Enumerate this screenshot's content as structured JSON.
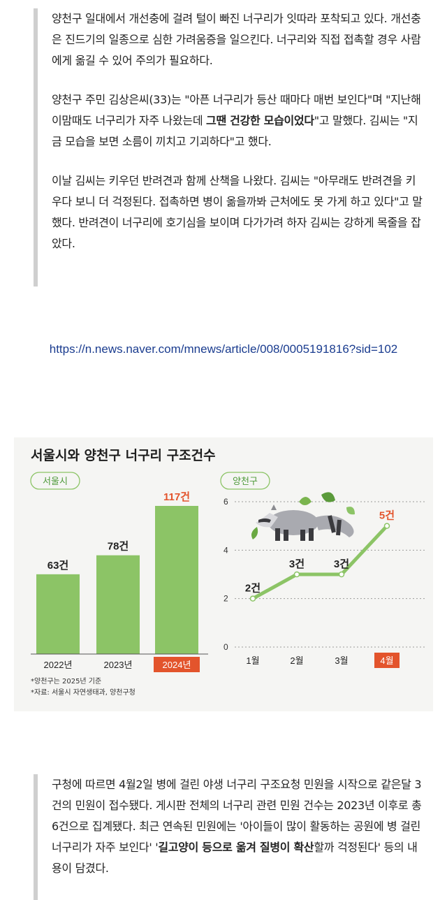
{
  "article_top": {
    "p1": "양천구 일대에서 개선충에 걸려 털이 빠진 너구리가 잇따라 포착되고 있다. 개선충은 진드기의 일종으로 심한 가려움증을 일으킨다. 너구리와 직접 접촉할 경우 사람에게 옮길 수 있어 주의가 필요하다.",
    "p2_a": "양천구 주민 김상은씨(33)는 \"아픈 너구리가 등산 때마다 매번 보인다\"며 \"지난해 이맘때도 너구리가 자주 나왔는데 ",
    "p2_bold": "그땐 건강한 모습이었다",
    "p2_b": "\"고 말했다. 김씨는 \"지금 모습을 보면 소름이 끼치고 기괴하다\"고 했다.",
    "p3": "이날 김씨는 키우던 반려견과 함께 산책을 나왔다. 김씨는 \"아무래도 반려견을 키우다 보니 더 걱정된다. 접촉하면 병이 옮을까봐 근처에도 못 가게 하고 있다\"고 말했다. 반려견이 너구리에 호기심을 보이며 다가가려 하자 김씨는 강하게 목줄을 잡았다."
  },
  "link": "https://n.news.naver.com/mnews/article/008/0005191816?sid=102",
  "infographic": {
    "title": "서울시와 양천구 너구리 구조건수",
    "footnote1": "*양천구는 2025년 기준",
    "footnote2": "*자료: 서울시 자연생태과, 양천구청"
  },
  "chart_data": [
    {
      "type": "bar",
      "panel_label": "서울시",
      "categories": [
        "2022년",
        "2023년",
        "2024년"
      ],
      "values": [
        63,
        78,
        117
      ],
      "data_labels": [
        "63건",
        "78건",
        "117건"
      ],
      "highlight_category": "2024년",
      "bar_color": "#8cc466",
      "highlight_color": "#e3542c"
    },
    {
      "type": "line",
      "panel_label": "양천구",
      "categories": [
        "1월",
        "2월",
        "3월",
        "4월"
      ],
      "values": [
        2,
        3,
        3,
        5
      ],
      "data_labels": [
        "2건",
        "3건",
        "3건",
        "5건"
      ],
      "y_ticks": [
        0,
        2,
        4,
        6
      ],
      "ylim": [
        0,
        6
      ],
      "grid": true,
      "highlight_category": "4월",
      "line_color": "#8cc466",
      "highlight_color": "#e3542c"
    }
  ],
  "article_bottom": {
    "p1_a": "구청에 따르면 4월2일 병에 걸린 야생 너구리 구조요청 민원을 시작으로 같은달 3건의 민원이 접수됐다. 게시판 전체의 너구리 관련 민원 건수는 2023년 이후로 총 6건으로 집계됐다. 최근 연속된 민원에는 '아이들이 많이 활동하는 공원에 병 걸린 너구리가 자주 보인다' '",
    "p1_bold": "길고양이 등으로 옮겨 질병이 확산",
    "p1_b": "할까 걱정된다' 등의 내용이 담겼다."
  }
}
